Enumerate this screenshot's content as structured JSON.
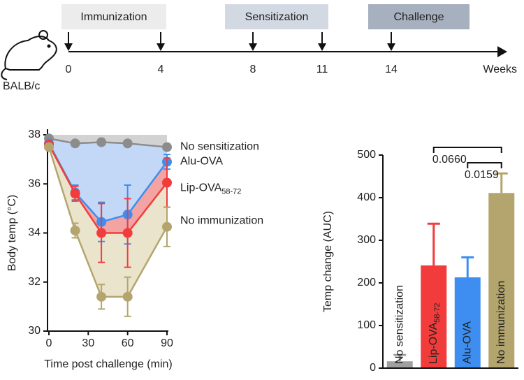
{
  "timeline": {
    "phases": [
      {
        "label": "Immunization",
        "color": "#ececec"
      },
      {
        "label": "Sensitization",
        "color": "#d3d9e3"
      },
      {
        "label": "Challenge",
        "color": "#a7b0bf"
      }
    ],
    "weeks": [
      0,
      4,
      8,
      11,
      14
    ],
    "unit": "Weeks",
    "strain": "BALB/c"
  },
  "chart_data": [
    {
      "type": "line",
      "xlabel": "Time post challenge (min)",
      "ylabel": "Body temp (°C)",
      "x": [
        0,
        20,
        40,
        60,
        90
      ],
      "xlim": [
        0,
        90
      ],
      "xticks": [
        0,
        30,
        60,
        90
      ],
      "ylim": [
        30,
        38
      ],
      "yticks": [
        30,
        32,
        34,
        36,
        38
      ],
      "series": [
        {
          "name": "No sensitization",
          "color": "#8c8c8c",
          "area_color": "#d2d2d2",
          "values": [
            37.85,
            37.65,
            37.7,
            37.65,
            37.5
          ]
        },
        {
          "name": "Alu-OVA",
          "color": "#3d8ef0",
          "area_color": "#c3d8f6",
          "values": [
            37.65,
            35.65,
            34.45,
            34.75,
            36.9
          ],
          "errors": [
            0.1,
            0.3,
            0.8,
            1.2,
            0.3
          ]
        },
        {
          "name": "Lip-OVA",
          "subscript": "58-72",
          "color": "#f23c3c",
          "area_color": "#f4a3a3",
          "values": [
            37.6,
            35.6,
            34.0,
            34.0,
            36.05
          ],
          "errors": [
            0.1,
            0.3,
            1.2,
            1.4,
            1.0
          ]
        },
        {
          "name": "No immunization",
          "color": "#b3a56d",
          "area_color": "#ebe4cc",
          "values": [
            37.5,
            34.1,
            31.4,
            31.4,
            34.25
          ],
          "errors": [
            0.1,
            0.3,
            0.5,
            0.8,
            0.8
          ]
        }
      ]
    },
    {
      "type": "bar",
      "ylabel": "Temp change (AUC)",
      "categories": [
        "No sensitization",
        "Lip-OVA",
        "Alu-OVA",
        "No immunization"
      ],
      "category_subscripts": [
        null,
        "58-72",
        null,
        null
      ],
      "values": [
        16,
        241,
        213,
        411
      ],
      "errors": [
        15,
        98,
        47,
        46
      ],
      "colors": [
        "#a0a0a0",
        "#f23c3c",
        "#3d8ef0",
        "#b3a56d"
      ],
      "ylim": [
        0,
        500
      ],
      "yticks": [
        0,
        100,
        200,
        300,
        400,
        500
      ],
      "comparisons": [
        {
          "label": "0.0660",
          "categories": [
            "Lip-OVA",
            "No immunization"
          ]
        },
        {
          "label": "0.0159",
          "categories": [
            "Alu-OVA",
            "No immunization"
          ]
        }
      ]
    }
  ]
}
